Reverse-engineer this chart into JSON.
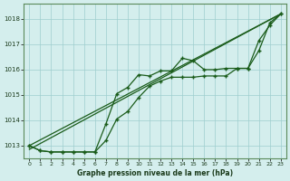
{
  "x": [
    0,
    1,
    2,
    3,
    4,
    5,
    6,
    7,
    8,
    9,
    10,
    11,
    12,
    13,
    14,
    15,
    16,
    17,
    18,
    19,
    20,
    21,
    22,
    23
  ],
  "line1": [
    1013.0,
    1012.8,
    1012.75,
    1012.75,
    1012.75,
    1012.75,
    1012.75,
    1013.85,
    1015.05,
    1015.3,
    1015.8,
    1015.75,
    1015.95,
    1015.95,
    1016.45,
    1016.35,
    1016.0,
    1016.0,
    1016.05,
    1016.05,
    1016.05,
    1016.75,
    1017.85,
    1018.2
  ],
  "line2": [
    1013.0,
    1012.8,
    1012.75,
    1012.75,
    1012.75,
    1012.75,
    1012.75,
    1013.2,
    1014.05,
    1014.35,
    1014.9,
    1015.35,
    1015.55,
    1015.7,
    1015.7,
    1015.7,
    1015.75,
    1015.75,
    1015.75,
    1016.05,
    1016.05,
    1017.15,
    1017.75,
    1018.2
  ],
  "line3_x": [
    0,
    23
  ],
  "line3_y": [
    1013.0,
    1018.2
  ],
  "line4_x": [
    0,
    23
  ],
  "line4_y": [
    1012.85,
    1018.2
  ],
  "ylim": [
    1012.5,
    1018.6
  ],
  "yticks": [
    1013,
    1014,
    1015,
    1016,
    1017,
    1018
  ],
  "xticks": [
    0,
    1,
    2,
    3,
    4,
    5,
    6,
    7,
    8,
    9,
    10,
    11,
    12,
    13,
    14,
    15,
    16,
    17,
    18,
    19,
    20,
    21,
    22,
    23
  ],
  "xlabel": "Graphe pression niveau de la mer (hPa)",
  "line_color": "#1a5c1a",
  "marker": "+",
  "bg_color": "#d4eeed",
  "grid_color": "#9ecece",
  "spine_color": "#5a8a5a"
}
